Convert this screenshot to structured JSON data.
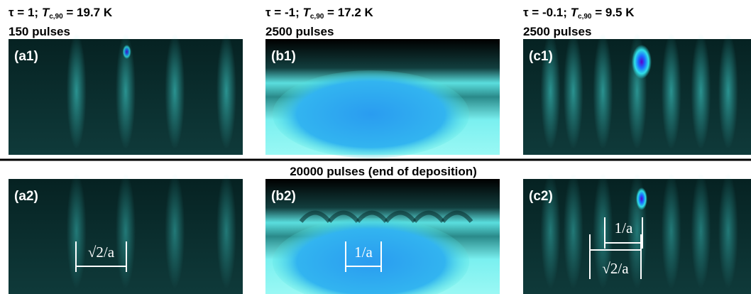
{
  "top_panels": [
    {
      "label": "(a1)",
      "header": {
        "prefix": "τ = 1; ",
        "symbol": "T",
        "subscript": "c,90",
        "suffix": " = 19.7 K"
      },
      "pulses": "150 pulses"
    },
    {
      "label": "(b1)",
      "header": {
        "prefix": "τ = -1; ",
        "symbol": "T",
        "subscript": "c,90",
        "suffix": " = 17.2 K"
      },
      "pulses": "2500 pulses"
    },
    {
      "label": "(c1)",
      "header": {
        "prefix": "τ = -0.1; ",
        "symbol": "T",
        "subscript": "c,90",
        "suffix": " = 9.5 K"
      },
      "pulses": "2500 pulses"
    }
  ],
  "middle_caption": "20000 pulses (end of deposition)",
  "bottom_panels": [
    {
      "label": "(a2)",
      "scale_bars": [
        "√2/a"
      ]
    },
    {
      "label": "(b2)",
      "scale_bars": [
        "1/a"
      ]
    },
    {
      "label": "(c2)",
      "scale_bars": [
        "1/a",
        "√2/a"
      ]
    }
  ]
}
